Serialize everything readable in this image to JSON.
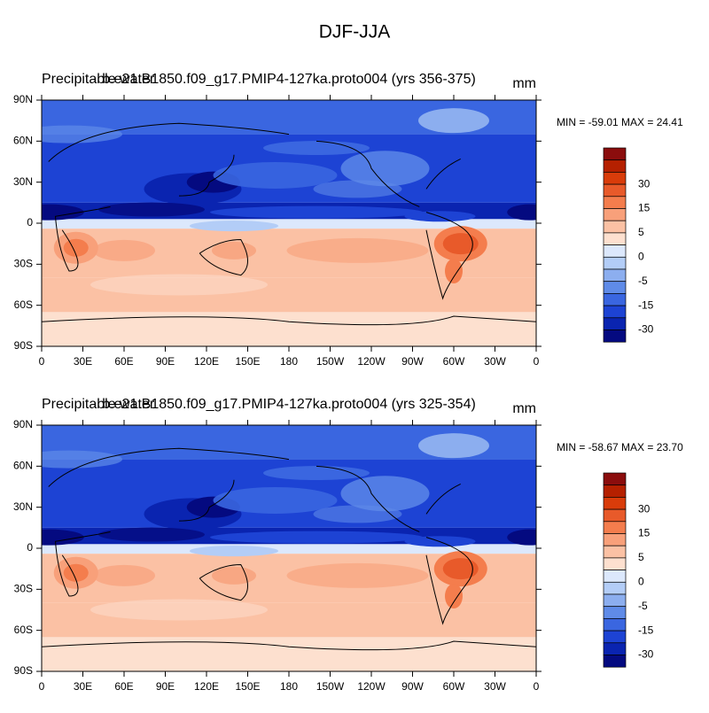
{
  "title": "DJF-JJA",
  "x_labels": [
    "0",
    "30E",
    "60E",
    "90E",
    "120E",
    "150E",
    "180",
    "150W",
    "120W",
    "90W",
    "60W",
    "30W",
    "0"
  ],
  "y_labels": [
    "90N",
    "60N",
    "30N",
    "0",
    "30S",
    "60S",
    "90S"
  ],
  "panels": [
    {
      "left_title": "Precipitable water",
      "center_title": "b.e21.B1850.f09_g17.PMIP4-127ka.proto004 (yrs 356-375)",
      "right_title": "mm",
      "stats": "MIN = -59.01 MAX =  24.41"
    },
    {
      "left_title": "Precipitable water",
      "center_title": "b.e21.B1850.f09_g17.PMIP4-127ka.proto004 (yrs 325-354)",
      "right_title": "mm",
      "stats": "MIN = -58.67 MAX =  23.70"
    }
  ],
  "colorbar": {
    "labels": [
      30,
      15,
      5,
      0,
      -5,
      -15,
      -30
    ],
    "colors": [
      "#8b0d0d",
      "#b52000",
      "#d93c0a",
      "#e85a2a",
      "#f47d4d",
      "#f8a07a",
      "#fbc1a4",
      "#fde0cf",
      "#dce8fc",
      "#b3cdf7",
      "#8caeef",
      "#5f8be8",
      "#3a66e0",
      "#1d43d4",
      "#0a24b0",
      "#040a80"
    ]
  }
}
